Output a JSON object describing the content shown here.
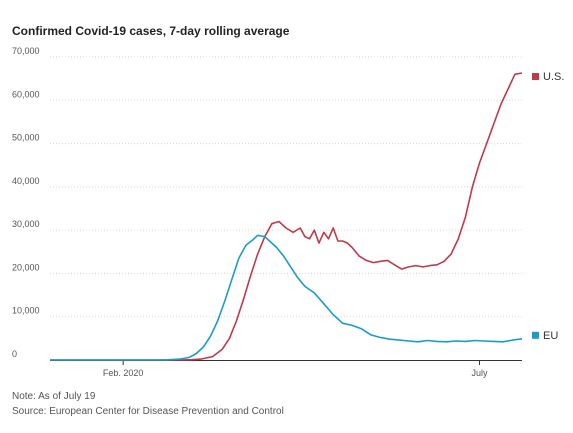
{
  "chart_data": {
    "type": "line",
    "title": "Confirmed Covid-19 cases, 7-day rolling average",
    "xlabel": "",
    "ylabel": "",
    "ylim": [
      0,
      70000
    ],
    "yticks": [
      0,
      10000,
      20000,
      30000,
      40000,
      50000,
      60000,
      70000
    ],
    "ytick_labels": [
      "0",
      "10,000",
      "20,000",
      "30,000",
      "40,000",
      "50,000",
      "60,000",
      "70,000"
    ],
    "xlim": [
      "2020-01-01",
      "2020-07-19"
    ],
    "xticks": [
      {
        "label": "Feb. 2020",
        "date": "2020-02-01"
      },
      {
        "label": "July",
        "date": "2020-07-01"
      }
    ],
    "grid": true,
    "series": [
      {
        "name": "U.S.",
        "color": "#c0394b",
        "x": [
          "2020-01-01",
          "2020-02-01",
          "2020-02-15",
          "2020-02-25",
          "2020-03-01",
          "2020-03-05",
          "2020-03-10",
          "2020-03-14",
          "2020-03-17",
          "2020-03-20",
          "2020-03-23",
          "2020-03-26",
          "2020-03-29",
          "2020-04-01",
          "2020-04-04",
          "2020-04-07",
          "2020-04-10",
          "2020-04-13",
          "2020-04-16",
          "2020-04-18",
          "2020-04-20",
          "2020-04-22",
          "2020-04-24",
          "2020-04-26",
          "2020-04-28",
          "2020-04-30",
          "2020-05-02",
          "2020-05-04",
          "2020-05-06",
          "2020-05-08",
          "2020-05-11",
          "2020-05-14",
          "2020-05-17",
          "2020-05-20",
          "2020-05-23",
          "2020-05-26",
          "2020-05-29",
          "2020-06-01",
          "2020-06-04",
          "2020-06-07",
          "2020-06-10",
          "2020-06-13",
          "2020-06-16",
          "2020-06-19",
          "2020-06-22",
          "2020-06-25",
          "2020-06-28",
          "2020-07-01",
          "2020-07-04",
          "2020-07-07",
          "2020-07-10",
          "2020-07-13",
          "2020-07-16",
          "2020-07-19"
        ],
        "values": [
          0,
          0,
          0,
          10,
          60,
          200,
          800,
          2500,
          5000,
          9000,
          14000,
          19500,
          24500,
          28500,
          31500,
          32000,
          30500,
          29500,
          30500,
          28500,
          28000,
          30000,
          27000,
          29500,
          28000,
          30500,
          27500,
          27500,
          27000,
          26000,
          24000,
          23000,
          22500,
          22800,
          23000,
          22000,
          21000,
          21500,
          21800,
          21500,
          21800,
          22000,
          22800,
          24500,
          28000,
          33000,
          40000,
          45500,
          50000,
          54500,
          59000,
          62500,
          66000,
          66300
        ]
      },
      {
        "name": "EU",
        "color": "#1a9cc9",
        "x": [
          "2020-01-01",
          "2020-02-01",
          "2020-02-15",
          "2020-02-20",
          "2020-02-25",
          "2020-02-29",
          "2020-03-03",
          "2020-03-06",
          "2020-03-09",
          "2020-03-12",
          "2020-03-15",
          "2020-03-18",
          "2020-03-21",
          "2020-03-24",
          "2020-03-27",
          "2020-03-29",
          "2020-04-01",
          "2020-04-03",
          "2020-04-06",
          "2020-04-09",
          "2020-04-12",
          "2020-04-15",
          "2020-04-18",
          "2020-04-22",
          "2020-04-26",
          "2020-04-30",
          "2020-05-04",
          "2020-05-08",
          "2020-05-12",
          "2020-05-16",
          "2020-05-20",
          "2020-05-24",
          "2020-05-28",
          "2020-06-01",
          "2020-06-05",
          "2020-06-09",
          "2020-06-13",
          "2020-06-17",
          "2020-06-21",
          "2020-06-25",
          "2020-06-29",
          "2020-07-03",
          "2020-07-07",
          "2020-07-11",
          "2020-07-15",
          "2020-07-19"
        ],
        "values": [
          0,
          0,
          0,
          50,
          200,
          600,
          1500,
          3000,
          5500,
          9000,
          13500,
          18500,
          23500,
          26500,
          27800,
          28800,
          28500,
          27500,
          26000,
          24000,
          21500,
          19000,
          17000,
          15500,
          13000,
          10500,
          8500,
          8000,
          7200,
          5800,
          5200,
          4800,
          4600,
          4400,
          4200,
          4500,
          4300,
          4200,
          4400,
          4300,
          4500,
          4400,
          4300,
          4200,
          4600,
          4900
        ]
      }
    ],
    "annotations": {
      "note": "Note: As of July 19",
      "source": "Source: European Center for Disease Prevention and Control"
    }
  }
}
